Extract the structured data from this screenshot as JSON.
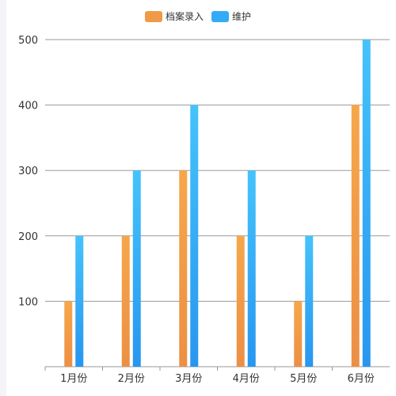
{
  "chart_data": {
    "type": "bar",
    "categories": [
      "1月份",
      "2月份",
      "3月份",
      "4月份",
      "5月份",
      "6月份"
    ],
    "series": [
      {
        "name": "档案录入",
        "values": [
          100,
          200,
          300,
          200,
          100,
          400
        ],
        "colors": [
          "#f6a74a",
          "#ec8f45"
        ]
      },
      {
        "name": "维护",
        "values": [
          200,
          300,
          400,
          300,
          200,
          500
        ],
        "colors": [
          "#45c3fb",
          "#2796f0"
        ]
      }
    ],
    "yticks": [
      100,
      200,
      300,
      400,
      500
    ],
    "ylim": [
      0,
      500
    ],
    "grid": true,
    "legend": "top-center"
  }
}
